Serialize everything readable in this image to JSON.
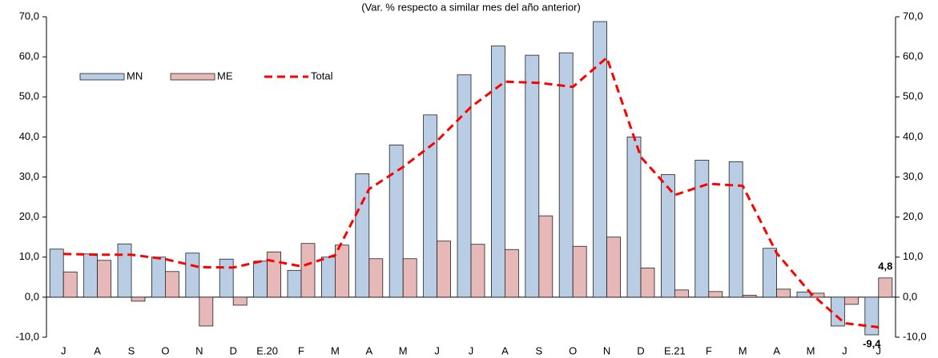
{
  "chart_data": {
    "type": "bar",
    "subtitle": "(Var. % respecto a similar mes del año anterior)",
    "categories": [
      "J",
      "A",
      "S",
      "O",
      "N",
      "D",
      "E.20",
      "F",
      "M",
      "A",
      "M",
      "J",
      "J",
      "A",
      "S",
      "O",
      "N",
      "D",
      "E.21",
      "F",
      "M",
      "A",
      "M",
      "J",
      "J"
    ],
    "series": [
      {
        "name": "MN",
        "type": "bar",
        "color": "#b9cde5",
        "values": [
          12.0,
          10.8,
          13.3,
          10.0,
          11.0,
          9.5,
          9.0,
          6.7,
          10.0,
          30.8,
          38.0,
          45.5,
          55.5,
          62.7,
          60.4,
          61.0,
          68.8,
          40.0,
          30.6,
          34.2,
          33.8,
          12.2,
          1.3,
          -7.2,
          -9.4
        ],
        "value_labels": [
          null,
          null,
          null,
          null,
          null,
          null,
          null,
          null,
          null,
          null,
          null,
          null,
          null,
          null,
          null,
          null,
          null,
          null,
          null,
          null,
          null,
          null,
          null,
          null,
          "-9,4"
        ]
      },
      {
        "name": "ME",
        "type": "bar",
        "color": "#e6b9b8",
        "values": [
          6.3,
          9.2,
          -1.0,
          6.4,
          -7.2,
          -2.0,
          11.3,
          13.4,
          13.0,
          9.6,
          9.6,
          14.0,
          13.2,
          11.9,
          20.3,
          12.7,
          15.0,
          7.3,
          1.8,
          1.4,
          0.5,
          2.0,
          1.0,
          -1.8,
          4.8
        ],
        "value_labels": [
          null,
          null,
          null,
          null,
          null,
          null,
          null,
          null,
          null,
          null,
          null,
          null,
          null,
          null,
          null,
          null,
          null,
          null,
          null,
          null,
          null,
          null,
          null,
          null,
          "4,8"
        ]
      },
      {
        "name": "Total",
        "type": "line",
        "color": "#ff0000",
        "values": [
          10.8,
          10.6,
          10.6,
          9.5,
          7.5,
          7.4,
          9.3,
          7.7,
          10.5,
          27.0,
          32.5,
          39.0,
          47.5,
          53.8,
          53.5,
          52.5,
          59.8,
          35.0,
          25.5,
          28.3,
          27.8,
          11.0,
          1.0,
          -6.5,
          -7.5
        ]
      }
    ],
    "ylim": [
      -10,
      70
    ],
    "yticks": [
      {
        "value": -10,
        "label": "-10,0"
      },
      {
        "value": 0,
        "label": "0,0"
      },
      {
        "value": 10,
        "label": "10,0"
      },
      {
        "value": 20,
        "label": "20,0"
      },
      {
        "value": 30,
        "label": "30,0"
      },
      {
        "value": 40,
        "label": "40,0"
      },
      {
        "value": 50,
        "label": "50,0"
      },
      {
        "value": 60,
        "label": "60,0"
      },
      {
        "value": 70,
        "label": "70,0"
      }
    ],
    "y2lim": [
      -10,
      70
    ],
    "y2ticks": [
      {
        "value": -10,
        "label": "-10,0"
      },
      {
        "value": 0,
        "label": "0,0"
      },
      {
        "value": 10,
        "label": "10,0"
      },
      {
        "value": 20,
        "label": "20,0"
      },
      {
        "value": 30,
        "label": "30,0"
      },
      {
        "value": 40,
        "label": "40,0"
      },
      {
        "value": 50,
        "label": "50,0"
      },
      {
        "value": 60,
        "label": "60,0"
      },
      {
        "value": 70,
        "label": "70,0"
      }
    ],
    "grid": false,
    "legend": "upper left"
  }
}
